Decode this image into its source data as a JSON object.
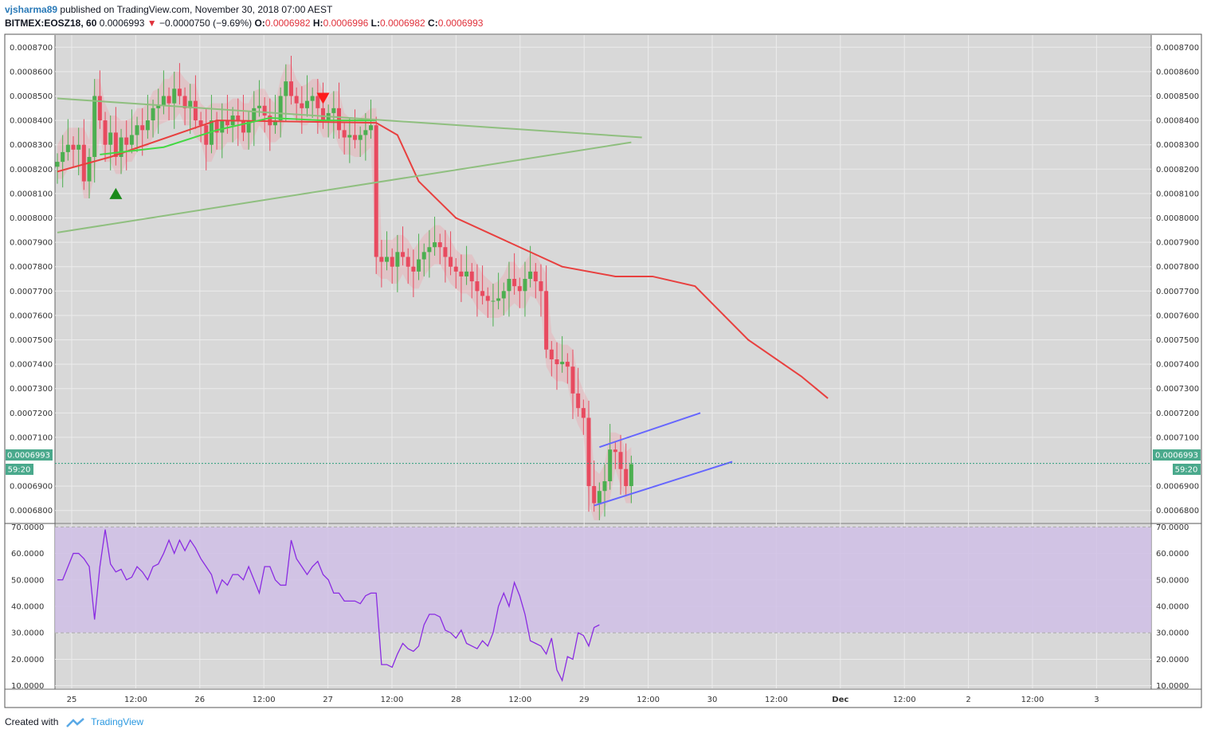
{
  "header": {
    "author": "vjsharma89",
    "published_text": "published on TradingView.com, November 30, 2018 07:00 AEST",
    "symbol": "BITMEX:EOSZ18, 60",
    "last": "0.0006993",
    "change": "−0.0000750 (−9.69%)",
    "open_label": "O:",
    "open": "0.0006982",
    "high_label": "H:",
    "high": "0.0006996",
    "low_label": "L:",
    "low": "0.0006982",
    "close_label": "C:",
    "close": "0.0006993"
  },
  "price_badge": {
    "price": "0.0006993",
    "countdown": "59:20"
  },
  "footer": {
    "created_with": "Created with",
    "brand": "TradingView"
  },
  "colors": {
    "up": "#4caf50",
    "down": "#e84a5f",
    "ma_red": "#e8403f",
    "ma_green": "#44d844",
    "trend": "#8fbf7f",
    "channel": "#6666ff",
    "rsi": "#8a2be2",
    "rsi_band": "#d0c0e6",
    "badge": "#4aa98c",
    "panel_bg": "#d8d8d8"
  },
  "chart_data": [
    {
      "type": "candlestick",
      "title": "BITMEX:EOSZ18, 60",
      "xlabel": "",
      "ylabel": "",
      "ylim": [
        0.000675,
        0.000875
      ],
      "y_ticks": [
        "0.0008700",
        "0.0008600",
        "0.0008500",
        "0.0008400",
        "0.0008300",
        "0.0008200",
        "0.0008100",
        "0.0008000",
        "0.0007900",
        "0.0007800",
        "0.0007700",
        "0.0007600",
        "0.0007500",
        "0.0007400",
        "0.0007300",
        "0.0007200",
        "0.0007100",
        "0.0006900",
        "0.0006800"
      ],
      "x_ticks": [
        "25",
        "12:00",
        "26",
        "12:00",
        "27",
        "12:00",
        "28",
        "12:00",
        "29",
        "12:00",
        "30",
        "12:00",
        "Dec",
        "12:00",
        "2",
        "12:00",
        "3"
      ],
      "grid": true,
      "series": [
        {
          "name": "",
          "type": "candle",
          "close_path": [
            0.000823,
            0.000827,
            0.00083,
            0.000828,
            0.00083,
            0.000815,
            0.000825,
            0.00085,
            0.00084,
            0.00083,
            0.000835,
            0.000825,
            0.000833,
            0.00083,
            0.000834,
            0.000838,
            0.000836,
            0.00084,
            0.000845,
            0.000846,
            0.00085,
            0.000847,
            0.000853,
            0.00085,
            0.000845,
            0.000848,
            0.00084,
            0.000838,
            0.00083,
            0.00084,
            0.000835,
            0.00084,
            0.000838,
            0.000842,
            0.00084,
            0.000835,
            0.00084,
            0.000845,
            0.000846,
            0.000842,
            0.000838,
            0.00084,
            0.00085,
            0.000856,
            0.00085,
            0.000847,
            0.000845,
            0.000848,
            0.00085,
            0.000845,
            0.00084,
            0.000843,
            0.000845,
            0.000836,
            0.000833,
            0.000834,
            0.000832,
            0.000834,
            0.000836,
            0.000838,
            0.000784,
            0.000782,
            0.000784,
            0.00078,
            0.000786,
            0.000784,
            0.00078,
            0.000778,
            0.000783,
            0.000786,
            0.000788,
            0.00079,
            0.000788,
            0.000784,
            0.00078,
            0.000778,
            0.000776,
            0.000778,
            0.000774,
            0.00077,
            0.000768,
            0.000766,
            0.000766,
            0.000767,
            0.00077,
            0.000775,
            0.000772,
            0.00077,
            0.000775,
            0.000778,
            0.000774,
            0.00077,
            0.000746,
            0.000742,
            0.00074,
            0.000741,
            0.000739,
            0.000728,
            0.000722,
            0.000718,
            0.00069,
            0.000683,
            0.000688,
            0.000692,
            0.000705,
            0.000704,
            0.000697,
            0.00069,
            0.000699
          ]
        },
        {
          "name": "",
          "type": "line",
          "color": "#e8403f",
          "points": [
            [
              0,
              0.000819
            ],
            [
              10,
              0.000825
            ],
            [
              30,
              0.00084
            ],
            [
              60,
              0.000839
            ],
            [
              64,
              0.000834
            ],
            [
              68,
              0.000815
            ],
            [
              75,
              0.0008
            ],
            [
              85,
              0.00079
            ],
            [
              95,
              0.00078
            ],
            [
              105,
              0.000776
            ],
            [
              112,
              0.000776
            ],
            [
              120,
              0.000772
            ],
            [
              130,
              0.00075
            ],
            [
              140,
              0.000735
            ],
            [
              145,
              0.000726
            ]
          ]
        },
        {
          "name": "",
          "type": "line",
          "color": "#44d844",
          "points": [
            [
              8,
              0.000826
            ],
            [
              20,
              0.000829
            ],
            [
              30,
              0.000836
            ],
            [
              40,
              0.000841
            ],
            [
              50,
              0.00084
            ],
            [
              60,
              0.00084
            ]
          ]
        },
        {
          "name": "",
          "type": "trendline",
          "points": [
            [
              0,
              0.000849
            ],
            [
              110,
              0.000833
            ]
          ]
        },
        {
          "name": "",
          "type": "trendline",
          "points": [
            [
              0,
              0.000794
            ],
            [
              108,
              0.000831
            ]
          ]
        },
        {
          "name": "",
          "type": "channel",
          "upper": [
            [
              102,
              0.000706
            ],
            [
              121,
              0.00072
            ]
          ],
          "lower": [
            [
              101,
              0.000682
            ],
            [
              127,
              0.0007
            ]
          ]
        }
      ],
      "markers": [
        {
          "kind": "buy",
          "x": 11,
          "y": 0.00081
        },
        {
          "kind": "sell",
          "x": 50,
          "y": 0.000849
        }
      ],
      "last_price": 0.0006993
    },
    {
      "type": "line",
      "title": "",
      "ylim": [
        9,
        71
      ],
      "y_ticks": [
        "70.0000",
        "60.0000",
        "50.0000",
        "40.0000",
        "30.0000",
        "20.0000",
        "10.0000"
      ],
      "band": [
        30,
        70
      ],
      "series": [
        {
          "name": "",
          "values": [
            50,
            50,
            55,
            60,
            60,
            58,
            55,
            35,
            55,
            69,
            56,
            53,
            54,
            50,
            51,
            55,
            53,
            50,
            55,
            56,
            60,
            65,
            60,
            65,
            61,
            65,
            62,
            58,
            55,
            52,
            45,
            50,
            48,
            52,
            52,
            50,
            55,
            50,
            45,
            55,
            55,
            50,
            48,
            48,
            65,
            58,
            55,
            52,
            55,
            57,
            52,
            50,
            45,
            45,
            42,
            42,
            42,
            41,
            44,
            45,
            45,
            18,
            18,
            17,
            22,
            26,
            24,
            23,
            25,
            33,
            37,
            37,
            36,
            31,
            30,
            28,
            31,
            26,
            25,
            24,
            27,
            25,
            30,
            40,
            45,
            40,
            49,
            44,
            37,
            27,
            26,
            25,
            22,
            28,
            16,
            12,
            21,
            20,
            30,
            29,
            25,
            32,
            33
          ]
        }
      ]
    }
  ]
}
